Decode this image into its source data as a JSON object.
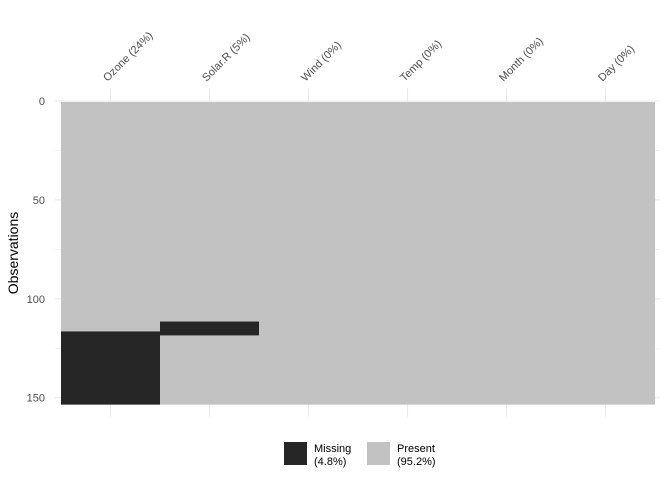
{
  "chart_data": {
    "type": "heatmap",
    "title": "",
    "xlabel": "",
    "ylabel": "Observations",
    "ylim": [
      0,
      153
    ],
    "y_ticks": [
      0,
      50,
      100,
      150
    ],
    "n_rows": 153,
    "columns": [
      {
        "label": "Ozone (24%)",
        "missing_rows": [
          [
            117,
            153
          ]
        ]
      },
      {
        "label": "Solar.R (5%)",
        "missing_rows": [
          [
            112,
            118
          ]
        ]
      },
      {
        "label": "Wind (0%)",
        "missing_rows": []
      },
      {
        "label": "Temp (0%)",
        "missing_rows": []
      },
      {
        "label": "Month (0%)",
        "missing_rows": []
      },
      {
        "label": "Day (0%)",
        "missing_rows": []
      }
    ],
    "legend": {
      "position": "bottom",
      "items": [
        {
          "label": "Missing",
          "pct": "(4.8%)",
          "color": "#262626"
        },
        {
          "label": "Present",
          "pct": "(95.2%)",
          "color": "#c2c2c2"
        }
      ]
    },
    "grid": true
  }
}
